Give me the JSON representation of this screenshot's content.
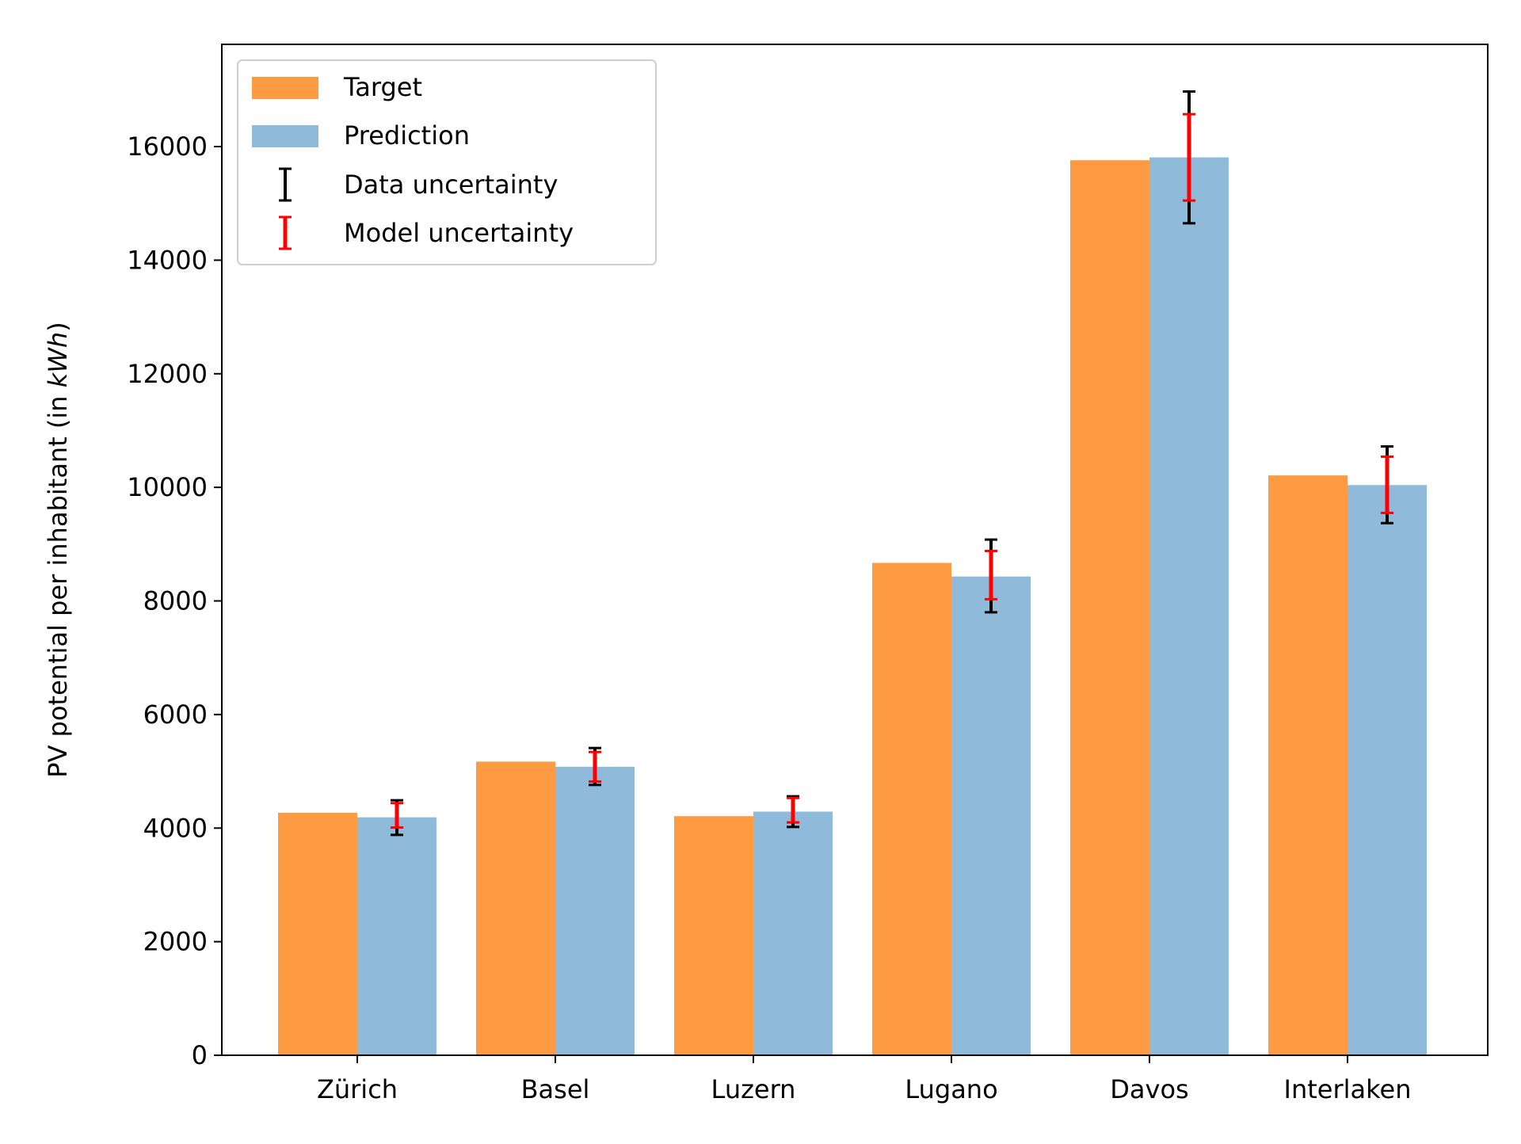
{
  "chart_data": {
    "type": "bar",
    "title": "",
    "xlabel": "",
    "ylabel": "PV potential per inhabitant (in ",
    "ylabel_unit": "kWh",
    "ylabel_close": ")",
    "categories": [
      "Zürich",
      "Basel",
      "Luzern",
      "Lugano",
      "Davos",
      "Interlaken"
    ],
    "ylim": [
      0,
      17800
    ],
    "yticks": [
      0,
      2000,
      4000,
      6000,
      8000,
      10000,
      12000,
      14000,
      16000
    ],
    "ytick_labels": [
      "0",
      "2000",
      "4000",
      "6000",
      "8000",
      "10000",
      "12000",
      "14000",
      "16000"
    ],
    "grid": false,
    "legend_position": "top-left",
    "series": [
      {
        "name": "Target",
        "color": "#fe9a42",
        "values": [
          4270,
          5170,
          4210,
          8670,
          15760,
          10210
        ]
      },
      {
        "name": "Prediction",
        "color": "#8fbad9",
        "values": [
          4190,
          5080,
          4290,
          8430,
          15810,
          10040
        ]
      }
    ],
    "error_bars": [
      {
        "name": "Data uncertainty",
        "color": "#000000",
        "lower": [
          3880,
          4760,
          4020,
          7800,
          14650,
          9370
        ],
        "upper": [
          4490,
          5410,
          4560,
          9080,
          16970,
          10720
        ]
      },
      {
        "name": "Model uncertainty",
        "color": "#ff0000",
        "lower": [
          4010,
          4820,
          4100,
          8030,
          15050,
          9550
        ],
        "upper": [
          4440,
          5340,
          4530,
          8880,
          16570,
          10540
        ]
      }
    ]
  }
}
